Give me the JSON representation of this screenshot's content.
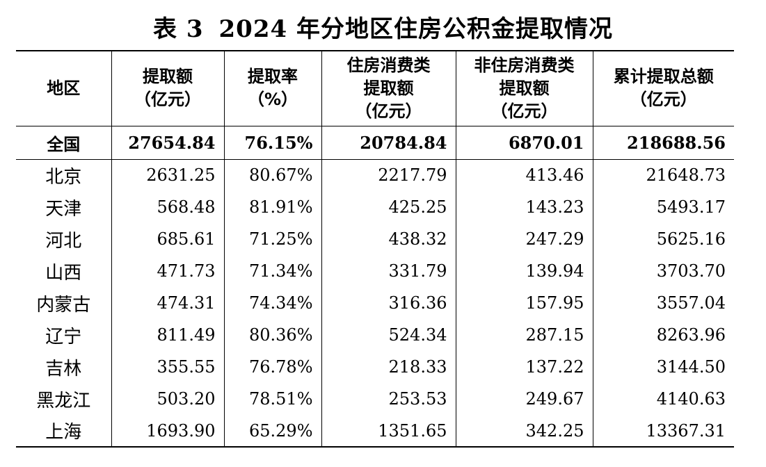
{
  "title": {
    "label": "表 3",
    "text": "2024 年分地区住房公积金提取情况"
  },
  "headers": [
    {
      "lines": [
        "地区"
      ]
    },
    {
      "lines": [
        "提取额",
        "（亿元）"
      ]
    },
    {
      "lines": [
        "提取率",
        "（%）"
      ]
    },
    {
      "lines": [
        "住房消费类",
        "提取额",
        "（亿元）"
      ]
    },
    {
      "lines": [
        "非住房消费类",
        "提取额",
        "（亿元）"
      ]
    },
    {
      "lines": [
        "累计提取总额",
        "（亿元）"
      ]
    }
  ],
  "rows": [
    {
      "region": "全国",
      "withdrawal": "27654.84",
      "rate": "76.15%",
      "housing": "20784.84",
      "non_housing": "6870.01",
      "cumulative": "218688.56"
    },
    {
      "region": "北京",
      "withdrawal": "2631.25",
      "rate": "80.67%",
      "housing": "2217.79",
      "non_housing": "413.46",
      "cumulative": "21648.73"
    },
    {
      "region": "天津",
      "withdrawal": "568.48",
      "rate": "81.91%",
      "housing": "425.25",
      "non_housing": "143.23",
      "cumulative": "5493.17"
    },
    {
      "region": "河北",
      "withdrawal": "685.61",
      "rate": "71.25%",
      "housing": "438.32",
      "non_housing": "247.29",
      "cumulative": "5625.16"
    },
    {
      "region": "山西",
      "withdrawal": "471.73",
      "rate": "71.34%",
      "housing": "331.79",
      "non_housing": "139.94",
      "cumulative": "3703.70"
    },
    {
      "region": "内蒙古",
      "withdrawal": "474.31",
      "rate": "74.34%",
      "housing": "316.36",
      "non_housing": "157.95",
      "cumulative": "3557.04"
    },
    {
      "region": "辽宁",
      "withdrawal": "811.49",
      "rate": "80.36%",
      "housing": "524.34",
      "non_housing": "287.15",
      "cumulative": "8263.96"
    },
    {
      "region": "吉林",
      "withdrawal": "355.55",
      "rate": "76.78%",
      "housing": "218.33",
      "non_housing": "137.22",
      "cumulative": "3144.50"
    },
    {
      "region": "黑龙江",
      "withdrawal": "503.20",
      "rate": "78.51%",
      "housing": "253.53",
      "non_housing": "249.67",
      "cumulative": "4140.63"
    },
    {
      "region": "上海",
      "withdrawal": "1693.90",
      "rate": "65.29%",
      "housing": "1351.65",
      "non_housing": "342.25",
      "cumulative": "13367.31"
    }
  ]
}
